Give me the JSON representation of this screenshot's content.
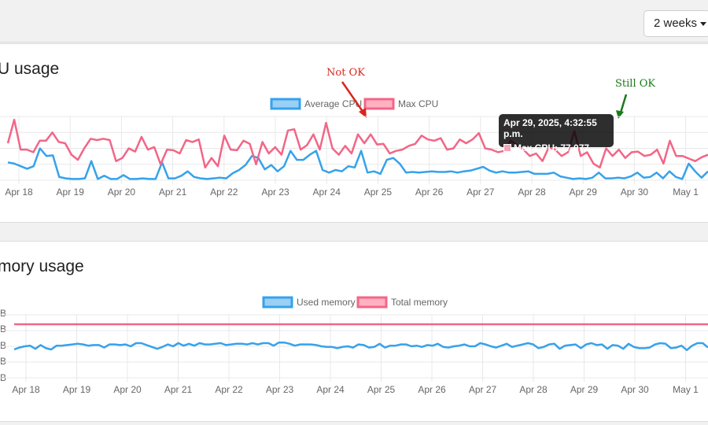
{
  "toolbar": {
    "range_label": "2 weeks"
  },
  "cpu_panel": {
    "title": "U usage"
  },
  "mem_panel": {
    "title": "mory usage"
  },
  "colors": {
    "blue": "#36a2eb",
    "blue_fill": "#9ad0f5",
    "pink": "#f26687",
    "pink_fill": "#ffb1c1",
    "red_annot": "#d9261c",
    "green_annot": "#1a7a1a"
  },
  "annotations": {
    "not_ok": "Not OK",
    "still_ok": "Still OK"
  },
  "tooltip": {
    "title": "Apr 29, 2025, 4:32:55 p.m.",
    "row": "Max CPU: 77,077"
  },
  "chart_data": [
    {
      "type": "line",
      "title": "",
      "x_ticks": [
        "Apr 18",
        "Apr 19",
        "Apr 20",
        "Apr 21",
        "Apr 22",
        "Apr 23",
        "Apr 24",
        "Apr 25",
        "Apr 26",
        "Apr 27",
        "Apr 28",
        "Apr 29",
        "Apr 30",
        "May 1"
      ],
      "legend_position": "top",
      "grid": true,
      "series": [
        {
          "name": "Average CPU",
          "color": "#36a2eb",
          "values": [
            28,
            26,
            22,
            18,
            22,
            50,
            38,
            39,
            5,
            3,
            2,
            2,
            3,
            30,
            2,
            7,
            2,
            2,
            8,
            2,
            2,
            3,
            2,
            2,
            28,
            3,
            3,
            7,
            14,
            5,
            3,
            2,
            3,
            4,
            3,
            11,
            16,
            24,
            38,
            35,
            17,
            24,
            14,
            22,
            46,
            32,
            32,
            40,
            46,
            16,
            12,
            16,
            14,
            22,
            20,
            46,
            12,
            14,
            10,
            32,
            35,
            26,
            12,
            13,
            12,
            13,
            14,
            13,
            13,
            14,
            12,
            14,
            15,
            18,
            21,
            15,
            12,
            14,
            12,
            12,
            13,
            14,
            10,
            10,
            10,
            12,
            6,
            4,
            2,
            3,
            2,
            4,
            12,
            3,
            3,
            4,
            3,
            6,
            12,
            4,
            5,
            12,
            3,
            14,
            5,
            2,
            26,
            14,
            4,
            14
          ]
        },
        {
          "name": "Max CPU",
          "color": "#f26687",
          "values": [
            58,
            95,
            48,
            48,
            44,
            62,
            62,
            75,
            60,
            58,
            40,
            32,
            50,
            65,
            63,
            65,
            63,
            30,
            35,
            50,
            45,
            68,
            48,
            52,
            25,
            48,
            47,
            42,
            63,
            60,
            64,
            20,
            35,
            22,
            70,
            48,
            47,
            62,
            57,
            25,
            60,
            42,
            52,
            40,
            78,
            80,
            48,
            55,
            72,
            48,
            90,
            50,
            40,
            54,
            42,
            72,
            58,
            72,
            56,
            57,
            42,
            46,
            48,
            54,
            57,
            70,
            64,
            62,
            66,
            48,
            50,
            64,
            58,
            64,
            74,
            50,
            48,
            44,
            46,
            62,
            55,
            48,
            38,
            42,
            30,
            52,
            48,
            38,
            44,
            77,
            38,
            44,
            26,
            20,
            50,
            38,
            48,
            35,
            44,
            45,
            38,
            40,
            48,
            26,
            62,
            38,
            38,
            34,
            30,
            36,
            40
          ]
        }
      ]
    },
    {
      "type": "line",
      "title": "",
      "x_ticks": [
        "Apr 18",
        "Apr 19",
        "Apr 20",
        "Apr 21",
        "Apr 22",
        "Apr 23",
        "Apr 24",
        "Apr 25",
        "Apr 26",
        "Apr 27",
        "Apr 28",
        "Apr 29",
        "Apr 30",
        "May 1"
      ],
      "legend_position": "top",
      "grid": true,
      "series": [
        {
          "name": "Used memory",
          "color": "#36a2eb",
          "values": [
            45,
            48,
            50,
            51,
            46,
            52,
            47,
            45,
            51,
            51,
            52,
            53,
            54,
            53,
            51,
            52,
            52,
            48,
            53,
            53,
            52,
            53,
            50,
            55,
            55,
            52,
            49,
            46,
            49,
            53,
            50,
            55,
            51,
            54,
            51,
            55,
            53,
            53,
            54,
            55,
            52,
            53,
            54,
            54,
            53,
            55,
            53,
            55,
            55,
            51,
            56,
            56,
            54,
            51,
            53,
            53,
            53,
            52,
            50,
            49,
            49,
            47,
            49,
            50,
            48,
            53,
            52,
            48,
            49,
            54,
            48,
            51,
            51,
            53,
            53,
            50,
            51,
            49,
            52,
            51,
            54,
            49,
            48,
            50,
            51,
            53,
            50,
            50,
            55,
            53,
            50,
            48,
            51,
            54,
            49,
            51,
            53,
            55,
            53,
            47,
            49,
            53,
            54,
            46,
            51,
            52,
            53,
            47,
            53,
            55,
            52,
            53,
            46,
            52,
            51,
            46,
            54,
            49,
            47,
            47,
            48,
            53,
            55,
            54,
            47,
            48,
            51,
            44,
            51,
            55,
            55,
            48
          ]
        },
        {
          "name": "Total memory",
          "color": "#f26687",
          "values": [
            85,
            85,
            85,
            85,
            85,
            85,
            85,
            85,
            85,
            85,
            85,
            85,
            85,
            85,
            85
          ]
        }
      ]
    }
  ]
}
